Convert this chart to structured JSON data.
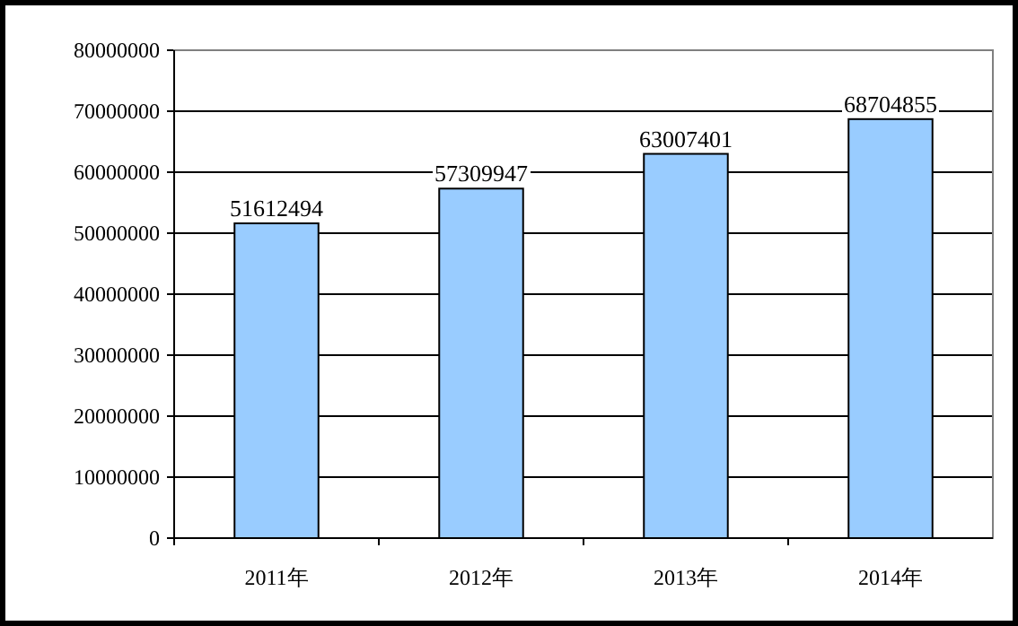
{
  "chart_data": {
    "type": "bar",
    "categories": [
      "2011年",
      "2012年",
      "2013年",
      "2014年"
    ],
    "values": [
      51612494,
      57309947,
      63007401,
      68704855
    ],
    "color": "#99ccff",
    "ylim": [
      0,
      80000000
    ],
    "yticks": [
      0,
      10000000,
      20000000,
      30000000,
      40000000,
      50000000,
      60000000,
      70000000,
      80000000
    ],
    "grid": "y",
    "data_labels": true
  }
}
